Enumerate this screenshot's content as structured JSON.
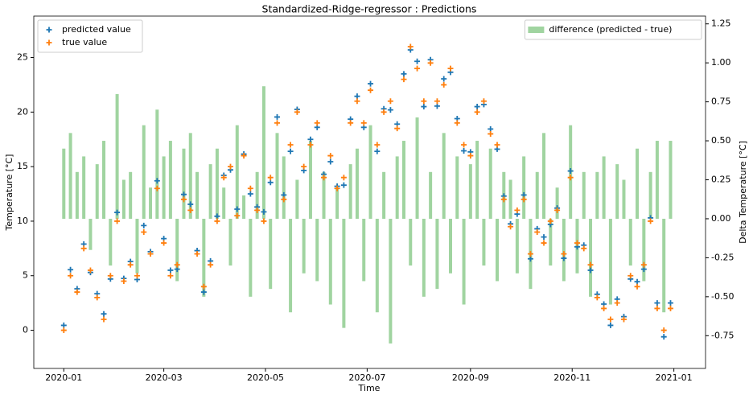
{
  "chart_data": {
    "type": "scatter",
    "title": "Standardized-Ridge-regressor : Predictions",
    "xlabel": "Time",
    "ylabel": "Temperature [°C]",
    "y2label": "Delta Temperature [°C]",
    "x": [
      0,
      4,
      8,
      12,
      16,
      20,
      24,
      28,
      32,
      36,
      40,
      44,
      48,
      52,
      56,
      60,
      64,
      68,
      72,
      76,
      80,
      84,
      88,
      92,
      96,
      100,
      104,
      108,
      112,
      116,
      120,
      124,
      128,
      132,
      136,
      140,
      144,
      148,
      152,
      156,
      160,
      164,
      168,
      172,
      176,
      180,
      184,
      188,
      192,
      196,
      200,
      204,
      208,
      212,
      216,
      220,
      224,
      228,
      232,
      236,
      240,
      244,
      248,
      252,
      256,
      260,
      264,
      268,
      272,
      276,
      280,
      284,
      288,
      292,
      296,
      300,
      304,
      308,
      312,
      316,
      320,
      324,
      328,
      332,
      336,
      340,
      344,
      348,
      352,
      356,
      360,
      364
    ],
    "xlim": [
      -18,
      385
    ],
    "xticks": [
      {
        "value": 0,
        "label": "2020-01"
      },
      {
        "value": 60,
        "label": "2020-03"
      },
      {
        "value": 121,
        "label": "2020-05"
      },
      {
        "value": 182,
        "label": "2020-07"
      },
      {
        "value": 244,
        "label": "2020-09"
      },
      {
        "value": 305,
        "label": "2020-11"
      },
      {
        "value": 366,
        "label": "2021-01"
      }
    ],
    "ylim": [
      -3.5,
      28.8
    ],
    "yticks": [
      0,
      5,
      10,
      15,
      20,
      25
    ],
    "y2lim": [
      -0.96,
      1.3
    ],
    "y2ticks": [
      -0.75,
      {
        "value": -0.5,
        "label": "-0.50"
      },
      -0.25,
      {
        "value": 0,
        "label": "0.00"
      },
      0.25,
      {
        "value": 0.5,
        "label": "0.50"
      },
      0.75,
      {
        "value": 1,
        "label": "1.00"
      },
      1.25
    ],
    "legend": "upper left",
    "legend2": "upper right",
    "series": [
      {
        "name": "predicted value",
        "type": "scatter",
        "color": "#1f77b4",
        "values": [
          0.45,
          5.55,
          3.8,
          7.9,
          5.3,
          3.35,
          1.5,
          4.7,
          10.8,
          4.75,
          6.3,
          4.65,
          9.6,
          7.2,
          13.7,
          8.4,
          5.5,
          5.6,
          12.45,
          11.55,
          7.3,
          3.5,
          6.35,
          10.45,
          14.2,
          14.7,
          11.1,
          16.15,
          12.5,
          11.3,
          10.85,
          13.55,
          19.55,
          12.4,
          16.4,
          20.25,
          14.65,
          17.5,
          18.6,
          14.3,
          15.45,
          13.2,
          13.3,
          19.35,
          21.45,
          18.6,
          22.6,
          16.4,
          20.3,
          20.2,
          18.9,
          23.5,
          25.7,
          24.65,
          20.5,
          24.8,
          20.55,
          23.05,
          23.65,
          19.4,
          16.45,
          16.35,
          20.5,
          20.7,
          18.45,
          16.6,
          12.3,
          9.75,
          10.65,
          12.4,
          6.55,
          9.3,
          8.55,
          9.7,
          11.2,
          6.6,
          14.6,
          7.65,
          7.8,
          5.5,
          3.3,
          2.4,
          0.45,
          2.85,
          1.25,
          4.7,
          4.45,
          5.6,
          10.3,
          2.5,
          -0.6,
          2.5
        ]
      },
      {
        "name": "true value",
        "type": "scatter",
        "color": "#ff7f0e",
        "values": [
          0,
          5,
          3.5,
          7.5,
          5.5,
          3,
          1,
          5,
          10,
          4.5,
          6,
          5,
          9,
          7,
          13,
          8,
          5,
          6,
          12,
          11,
          7,
          4,
          6,
          10,
          14,
          15,
          10.5,
          16,
          13,
          11,
          10,
          14,
          19,
          12,
          17,
          20,
          15,
          17,
          19,
          14,
          16,
          13,
          14,
          19,
          21,
          19,
          22,
          17,
          20,
          21,
          18.5,
          23,
          26,
          24,
          21,
          24.5,
          21,
          22.5,
          24,
          19,
          17,
          16,
          20,
          21,
          18,
          17,
          12,
          9.5,
          11,
          12,
          7,
          9,
          8,
          10,
          11,
          7,
          14,
          8,
          7.5,
          6,
          3,
          2,
          1,
          2.5,
          1,
          5,
          4,
          6,
          10,
          2,
          0,
          2
        ]
      },
      {
        "name": "difference (predicted - true)",
        "type": "bar",
        "axis": "y2",
        "color": "#2ca02c",
        "values": [
          0.45,
          0.55,
          0.3,
          0.4,
          -0.2,
          0.35,
          0.5,
          -0.3,
          0.8,
          0.25,
          0.3,
          -0.35,
          0.6,
          0.2,
          0.7,
          0.4,
          0.5,
          -0.4,
          0.45,
          0.55,
          0.3,
          -0.5,
          0.35,
          0.45,
          0.2,
          -0.3,
          0.6,
          0.15,
          -0.5,
          0.3,
          0.85,
          -0.45,
          0.55,
          0.4,
          -0.6,
          0.25,
          -0.35,
          0.5,
          -0.4,
          0.3,
          -0.55,
          0.2,
          -0.7,
          0.35,
          0.45,
          -0.4,
          0.6,
          -0.6,
          0.3,
          -0.8,
          0.4,
          0.5,
          -0.3,
          0.65,
          -0.5,
          0.3,
          -0.45,
          0.55,
          -0.35,
          0.4,
          -0.55,
          0.35,
          0.5,
          -0.3,
          0.45,
          -0.4,
          0.3,
          0.25,
          -0.35,
          0.4,
          -0.45,
          0.3,
          0.55,
          -0.3,
          0.2,
          -0.4,
          0.6,
          -0.35,
          0.3,
          -0.5,
          0.3,
          0.4,
          -0.55,
          0.35,
          0.25,
          -0.3,
          0.45,
          -0.4,
          0.3,
          0.5,
          -0.6,
          0.5
        ]
      }
    ]
  }
}
